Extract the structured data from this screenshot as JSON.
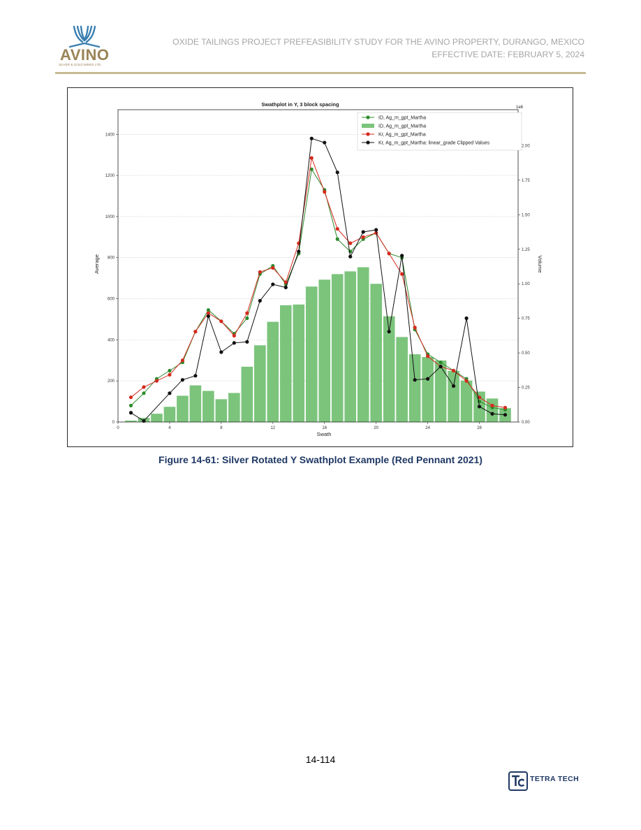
{
  "header": {
    "company": "AVINO",
    "company_tagline": "SILVER & GOLD MINES LTD.",
    "title_line1": "OXIDE TAILINGS PROJECT PREFEASIBILITY STUDY FOR THE AVINO PROPERTY, DURANGO, MEXICO",
    "title_line2": "EFFECTIVE DATE: FEBRUARY 5, 2024"
  },
  "figure": {
    "caption": "Figure 14-61: Silver Rotated Y Swathplot Example (Red Pennant 2021)"
  },
  "footer": {
    "page_number": "14-114",
    "brand": "TETRA TECH"
  },
  "colors": {
    "brand_gold": "#9a8457",
    "logo_blue": "#3a7fb0",
    "caption_blue": "#1f3864",
    "bar_green": "#7cc47c",
    "id_green": "#2e8b2e",
    "kr_red": "#d62a1e",
    "clipped_black": "#111111"
  },
  "chart_data": {
    "type": "bar+line",
    "title": "Swathplot in Y, 3 block spacing",
    "xlabel": "Swath",
    "ylabel": "Average",
    "y2label": "Volume",
    "y2_scale_label": "1e6",
    "xlim": [
      0,
      31
    ],
    "ylim": [
      0,
      1520
    ],
    "y2lim": [
      0,
      2.26
    ],
    "xticks": [
      0,
      4,
      8,
      12,
      16,
      20,
      24,
      28
    ],
    "yticks": [
      0,
      200,
      400,
      600,
      800,
      1000,
      1200,
      1400
    ],
    "y2ticks": [
      "0.00",
      "0.25",
      "0.50",
      "0.75",
      "1.00",
      "1.25",
      "1.50",
      "1.75",
      "2.00"
    ],
    "grid": "horizontal",
    "legend_position": "top-right",
    "legend": [
      "ID, Ag_m_gpt_Martha",
      "ID, Ag_m_gpt_Martha",
      "Kr, Ag_m_gpt_Martha",
      "Kr, Ag_m_gpt_Martha: linear_grade Clipped Values"
    ],
    "bars": {
      "name": "ID, Ag_m_gpt_Martha",
      "axis": "y2",
      "x": [
        1,
        2,
        3,
        4,
        5,
        6,
        7,
        8,
        9,
        10,
        11,
        12,
        13,
        14,
        15,
        16,
        17,
        18,
        19,
        20,
        21,
        22,
        23,
        24,
        25,
        26,
        27,
        28,
        29,
        30
      ],
      "values": [
        0.01,
        0.03,
        0.06,
        0.11,
        0.19,
        0.265,
        0.225,
        0.165,
        0.21,
        0.4,
        0.555,
        0.725,
        0.845,
        0.85,
        0.98,
        1.03,
        1.07,
        1.09,
        1.12,
        1.0,
        0.765,
        0.615,
        0.49,
        0.47,
        0.445,
        0.37,
        0.3,
        0.22,
        0.17,
        0.1
      ]
    },
    "series": [
      {
        "name": "ID, Ag_m_gpt_Martha",
        "axis": "y",
        "x": [
          1,
          2,
          3,
          4,
          5,
          6,
          7,
          8,
          9,
          10,
          11,
          12,
          13,
          14,
          15,
          16,
          17,
          18,
          19,
          20,
          21,
          22,
          23,
          24,
          25,
          26,
          27,
          28,
          29,
          30
        ],
        "values": [
          80,
          140,
          210,
          250,
          290,
          440,
          545,
          490,
          430,
          505,
          720,
          760,
          670,
          820,
          1230,
          1130,
          890,
          830,
          890,
          920,
          820,
          800,
          450,
          330,
          290,
          250,
          210,
          100,
          70,
          60
        ]
      },
      {
        "name": "Kr, Ag_m_gpt_Martha",
        "axis": "y",
        "x": [
          1,
          2,
          3,
          4,
          5,
          6,
          7,
          8,
          9,
          10,
          11,
          12,
          13,
          14,
          15,
          16,
          17,
          18,
          19,
          20,
          21,
          22,
          23,
          24,
          25,
          26,
          27,
          28,
          29,
          30
        ],
        "values": [
          120,
          170,
          200,
          230,
          300,
          440,
          530,
          490,
          420,
          530,
          730,
          750,
          680,
          870,
          1285,
          1120,
          940,
          870,
          900,
          920,
          820,
          720,
          460,
          320,
          270,
          250,
          200,
          120,
          80,
          70
        ]
      },
      {
        "name": "Kr, Ag_m_gpt_Martha: linear_grade Clipped Values",
        "axis": "y",
        "x": [
          1,
          2,
          4,
          5,
          6,
          7,
          8,
          9,
          10,
          11,
          12,
          13,
          14,
          15,
          16,
          17,
          18,
          19,
          20,
          21,
          22,
          23,
          24,
          25,
          26,
          27,
          28,
          29,
          30
        ],
        "values": [
          45,
          5,
          140,
          205,
          225,
          515,
          340,
          385,
          390,
          590,
          670,
          655,
          830,
          1380,
          1360,
          1215,
          805,
          925,
          935,
          440,
          810,
          205,
          210,
          270,
          175,
          505,
          75,
          40,
          35
        ]
      }
    ]
  }
}
